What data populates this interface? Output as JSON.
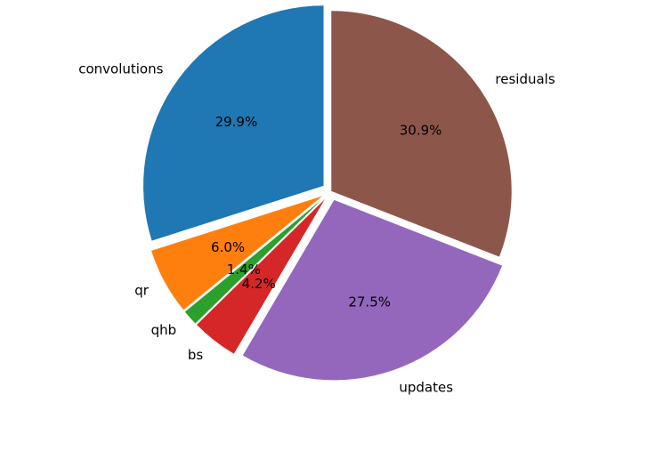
{
  "chart_data": {
    "type": "pie",
    "title": "",
    "start_angle_deg": 90,
    "direction": "counterclockwise",
    "slices": [
      {
        "label": "convolutions",
        "value": 29.9,
        "pct_label": "29.9%",
        "color": "#1f77b4",
        "exploded": true
      },
      {
        "label": "qr",
        "value": 6.0,
        "pct_label": "6.0%",
        "color": "#ff7f0e",
        "exploded": true
      },
      {
        "label": "qhb",
        "value": 1.4,
        "pct_label": "1.4%",
        "color": "#2ca02c",
        "exploded": true
      },
      {
        "label": "bs",
        "value": 4.2,
        "pct_label": "4.2%",
        "color": "#d62728",
        "exploded": true
      },
      {
        "label": "updates",
        "value": 27.5,
        "pct_label": "27.5%",
        "color": "#9467bd",
        "exploded": true
      },
      {
        "label": "residuals",
        "value": 30.9,
        "pct_label": "30.9%",
        "color": "#8c564b",
        "exploded": false
      }
    ]
  }
}
